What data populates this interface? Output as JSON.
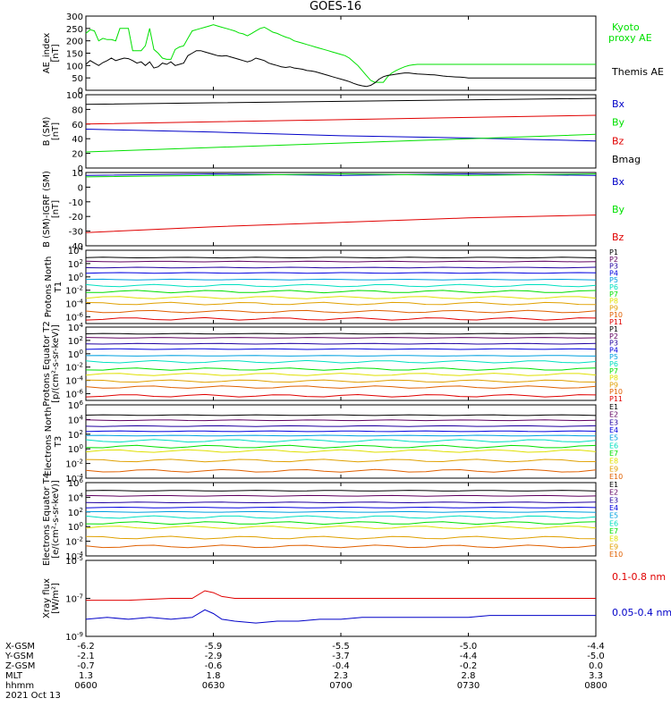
{
  "title": "GOES-16",
  "colors": {
    "black": "#000000",
    "green": "#00e000",
    "red": "#e00000",
    "blue": "#0000c8",
    "p_palette": [
      "#000000",
      "#600060",
      "#2000a0",
      "#0000e0",
      "#00a0e0",
      "#00e0c0",
      "#00e000",
      "#e0e000",
      "#e0a000",
      "#e06000",
      "#e00000"
    ]
  },
  "chart_data": [
    {
      "type": "line",
      "ylabel": "AE_index [nT]",
      "ylim": [
        0,
        300
      ],
      "y_ticks": [
        "0",
        "50",
        "100",
        "150",
        "200",
        "250",
        "300"
      ],
      "legend": [
        "Kyoto proxy AE",
        "Themis AE"
      ],
      "series": [
        {
          "name": "Kyoto proxy AE",
          "color": "#00e000",
          "x": [
            0,
            1,
            2,
            3,
            4,
            5,
            6,
            7,
            8,
            9,
            10,
            11,
            12,
            13,
            14,
            15,
            16,
            17,
            18,
            19,
            20,
            21,
            22,
            23,
            24,
            25,
            26,
            27,
            28,
            29,
            30,
            31,
            32,
            33,
            34,
            35,
            36,
            37,
            38,
            39,
            40,
            41,
            42,
            43,
            44,
            45,
            46,
            47,
            48,
            49,
            50,
            51,
            52,
            53,
            54,
            55,
            56,
            57,
            58,
            59,
            60,
            61,
            62,
            63,
            64,
            65,
            66,
            67,
            68,
            69,
            70,
            71,
            72,
            73,
            74,
            75,
            76,
            77,
            78,
            79,
            80,
            81,
            82,
            83,
            84,
            85,
            86,
            87,
            88,
            89,
            90,
            91,
            92,
            93,
            94,
            95,
            96,
            97,
            98,
            99,
            100,
            101,
            102,
            103,
            104,
            105,
            106,
            107,
            108,
            109,
            110,
            111,
            112,
            113,
            114,
            115,
            116,
            117,
            118,
            119,
            120
          ],
          "y": [
            230,
            245,
            240,
            200,
            210,
            205,
            205,
            200,
            250,
            250,
            250,
            160,
            160,
            160,
            180,
            250,
            165,
            150,
            130,
            125,
            125,
            165,
            175,
            180,
            210,
            240,
            245,
            250,
            255,
            260,
            265,
            260,
            255,
            250,
            245,
            240,
            232,
            228,
            220,
            230,
            240,
            250,
            255,
            245,
            235,
            230,
            222,
            215,
            210,
            200,
            195,
            190,
            185,
            180,
            175,
            170,
            165,
            160,
            155,
            150,
            145,
            140,
            130,
            115,
            100,
            80,
            60,
            40,
            32,
            32,
            32,
            55,
            70,
            80,
            88,
            95,
            100,
            103,
            105,
            105,
            105,
            105,
            105,
            105,
            105,
            105,
            105,
            105,
            105,
            105,
            105,
            105,
            105,
            105,
            105,
            105,
            105,
            105,
            105,
            105,
            105,
            105,
            105,
            105,
            105,
            105,
            105,
            105,
            105,
            105,
            105,
            105,
            105,
            105,
            105,
            105,
            105,
            105,
            105,
            105,
            105
          ]
        },
        {
          "name": "Themis AE",
          "color": "#000000",
          "x": [
            0,
            1,
            2,
            3,
            4,
            5,
            6,
            7,
            8,
            9,
            10,
            11,
            12,
            13,
            14,
            15,
            16,
            17,
            18,
            19,
            20,
            21,
            22,
            23,
            24,
            25,
            26,
            27,
            28,
            29,
            30,
            31,
            32,
            33,
            34,
            35,
            36,
            37,
            38,
            39,
            40,
            41,
            42,
            43,
            44,
            45,
            46,
            47,
            48,
            49,
            50,
            51,
            52,
            53,
            54,
            55,
            56,
            57,
            58,
            59,
            60,
            61,
            62,
            63,
            64,
            65,
            66,
            67,
            68,
            69,
            70,
            71,
            72,
            73,
            74,
            75,
            76,
            77,
            78,
            79,
            80,
            81,
            82,
            83,
            84,
            85,
            86,
            87,
            88,
            89,
            90,
            91,
            92,
            93,
            94,
            95,
            96,
            97,
            98,
            99,
            100,
            101,
            102,
            103,
            104,
            105,
            106,
            107,
            108,
            109,
            110,
            111,
            112,
            113,
            114,
            115,
            116,
            117,
            118,
            119,
            120
          ],
          "y": [
            105,
            120,
            110,
            100,
            112,
            120,
            130,
            120,
            125,
            130,
            128,
            120,
            110,
            115,
            100,
            115,
            90,
            95,
            110,
            105,
            115,
            100,
            105,
            110,
            140,
            150,
            160,
            160,
            155,
            150,
            145,
            140,
            138,
            140,
            135,
            130,
            125,
            120,
            115,
            120,
            130,
            125,
            120,
            110,
            105,
            100,
            95,
            92,
            95,
            90,
            88,
            85,
            80,
            78,
            75,
            70,
            65,
            60,
            55,
            50,
            45,
            40,
            35,
            28,
            22,
            18,
            15,
            20,
            30,
            45,
            55,
            60,
            62,
            65,
            68,
            70,
            70,
            68,
            66,
            65,
            64,
            63,
            62,
            60,
            58,
            56,
            55,
            54,
            53,
            52,
            50,
            50,
            50,
            50,
            50,
            50,
            50,
            50,
            50,
            50,
            50,
            50,
            50,
            50,
            50,
            50,
            50,
            50,
            50,
            50,
            50,
            50,
            50,
            50,
            50,
            50,
            50,
            50,
            50,
            50,
            50
          ]
        }
      ]
    },
    {
      "type": "line",
      "ylabel": "B (SM) [nT]",
      "ylim": [
        0,
        100
      ],
      "y_ticks": [
        "0",
        "20",
        "40",
        "60",
        "80",
        "100"
      ],
      "legend": [
        "Bx",
        "By",
        "Bz",
        "Bmag"
      ],
      "series": [
        {
          "name": "Bx",
          "color": "#0000c8",
          "x": [
            0,
            30,
            60,
            90,
            120
          ],
          "y": [
            53,
            49,
            44,
            41,
            37
          ]
        },
        {
          "name": "By",
          "color": "#00e000",
          "x": [
            0,
            30,
            60,
            90,
            120
          ],
          "y": [
            22,
            28,
            34,
            40,
            46
          ]
        },
        {
          "name": "Bz",
          "color": "#e00000",
          "x": [
            0,
            30,
            60,
            90,
            120
          ],
          "y": [
            60,
            63,
            66,
            69,
            72
          ]
        },
        {
          "name": "Bmag",
          "color": "#000000",
          "x": [
            0,
            30,
            60,
            90,
            120
          ],
          "y": [
            87,
            89,
            91,
            93,
            95
          ]
        }
      ]
    },
    {
      "type": "line",
      "ylabel": "B (SM)-IGRF (SM) [nT]",
      "ylim": [
        -40,
        10
      ],
      "y_ticks": [
        "-40",
        "-30",
        "-20",
        "-10",
        "0",
        "10"
      ],
      "legend": [
        "Bx",
        "By",
        "Bz"
      ],
      "series": [
        {
          "name": "Bx",
          "color": "#0000c8",
          "x": [
            0,
            30,
            60,
            90,
            120
          ],
          "y": [
            8,
            9,
            8,
            9,
            8
          ]
        },
        {
          "name": "By",
          "color": "#00e000",
          "x": [
            0,
            30,
            60,
            90,
            120
          ],
          "y": [
            7,
            8,
            9,
            8,
            9
          ]
        },
        {
          "name": "Bz",
          "color": "#e00000",
          "x": [
            0,
            30,
            60,
            90,
            120
          ],
          "y": [
            -31,
            -27,
            -24,
            -21,
            -19
          ]
        }
      ]
    },
    {
      "type": "line",
      "ylabel": "Protons North T1",
      "log": true,
      "ylim_exp": [
        -7,
        4
      ],
      "y_ticks": [
        "10^4",
        "10^2",
        "10^0",
        "10^-2",
        "10^-4",
        "10^-6"
      ],
      "legend": [
        "P1",
        "P2",
        "P3",
        "P4",
        "P5",
        "P6",
        "P7",
        "P8",
        "P9",
        "P10",
        "P11"
      ],
      "levels_exp": [
        2.9,
        2.3,
        1.4,
        0.6,
        -0.4,
        -1.3,
        -2.2,
        -3.1,
        -4.0,
        -5.2,
        -6.3
      ]
    },
    {
      "type": "line",
      "ylabel": "Protons Equator T2 [p/(cm²-s-sr-keV)]",
      "log": true,
      "ylim_exp": [
        -7,
        4
      ],
      "y_ticks": [
        "10^4",
        "10^2",
        "10^0",
        "10^-2",
        "10^-4",
        "10^-6"
      ],
      "legend": [
        "P1",
        "P2",
        "P3",
        "P4",
        "P5",
        "P6",
        "P7",
        "P8",
        "P9",
        "P10",
        "P11"
      ],
      "levels_exp": [
        3.0,
        2.4,
        1.5,
        0.7,
        -0.3,
        -1.2,
        -2.3,
        -3.1,
        -4.1,
        -5.0,
        -6.3
      ]
    },
    {
      "type": "line",
      "ylabel": "Electrons North T3",
      "log": true,
      "ylim_exp": [
        -4,
        6
      ],
      "y_ticks": [
        "10^6",
        "10^4",
        "10^2",
        "10^0",
        "10^-2",
        "10^-4"
      ],
      "legend": [
        "E1",
        "E2",
        "E3",
        "E4",
        "E5",
        "E6",
        "E7",
        "E8",
        "E9",
        "E10"
      ],
      "levels_exp": [
        4.6,
        3.9,
        3.1,
        2.4,
        1.8,
        1.1,
        0.3,
        -0.3,
        -1.6,
        -3.0
      ]
    },
    {
      "type": "line",
      "ylabel": "Electrons Equator T4 [e/(cm²-s-sr-keV)]",
      "log": true,
      "ylim_exp": [
        -4,
        6
      ],
      "y_ticks": [
        "10^6",
        "10^4",
        "10^2",
        "10^0",
        "10^-2",
        "10^-4"
      ],
      "legend": [
        "E1",
        "E2",
        "E3",
        "E4",
        "E5",
        "E6",
        "E7",
        "E8",
        "E9",
        "E10"
      ],
      "levels_exp": [
        4.9,
        4.2,
        3.3,
        2.6,
        2.0,
        1.3,
        0.5,
        -0.1,
        -1.5,
        -2.7
      ]
    },
    {
      "type": "line",
      "ylabel": "Xray flux [W/m²]",
      "log": true,
      "ylim_exp": [
        -9,
        -5
      ],
      "y_ticks": [
        "10^-5",
        "10^-7",
        "10^-9"
      ],
      "legend": [
        "0.1-0.8 nm",
        "0.05-0.4 nm"
      ],
      "series": [
        {
          "name": "0.1-0.8 nm",
          "color": "#e00000",
          "x": [
            0,
            10,
            20,
            25,
            28,
            30,
            32,
            35,
            40,
            50,
            60,
            70,
            80,
            90,
            100,
            110,
            120
          ],
          "y": [
            -7.1,
            -7.1,
            -7.0,
            -7.0,
            -6.6,
            -6.7,
            -6.9,
            -7.0,
            -7.0,
            -7.0,
            -7.0,
            -7.0,
            -7.0,
            -7.0,
            -7.0,
            -7.0,
            -7.0
          ]
        },
        {
          "name": "0.05-0.4 nm",
          "color": "#0000c8",
          "x": [
            0,
            5,
            10,
            15,
            20,
            25,
            28,
            30,
            32,
            35,
            40,
            45,
            50,
            55,
            60,
            65,
            70,
            75,
            80,
            85,
            90,
            95,
            100,
            105,
            110,
            115,
            120
          ],
          "y": [
            -8.1,
            -8.0,
            -8.1,
            -8.0,
            -8.1,
            -8.0,
            -7.6,
            -7.8,
            -8.1,
            -8.2,
            -8.3,
            -8.2,
            -8.2,
            -8.1,
            -8.1,
            -8.0,
            -8.0,
            -8.0,
            -8.0,
            -8.0,
            -8.0,
            -7.9,
            -7.9,
            -7.9,
            -7.9,
            -7.9,
            -7.9
          ]
        }
      ]
    }
  ],
  "x_axis": {
    "row_labels": [
      "X-GSM",
      "Y-GSM",
      "Z-GSM",
      "MLT",
      "hhmm"
    ],
    "date": "2021 Oct 13",
    "ticks": [
      {
        "pos": 0,
        "values": [
          "-6.2",
          "-2.1",
          "-0.7",
          "1.3",
          "0600"
        ]
      },
      {
        "pos": 30,
        "values": [
          "-5.9",
          "-2.9",
          "-0.6",
          "1.8",
          "0630"
        ]
      },
      {
        "pos": 60,
        "values": [
          "-5.5",
          "-3.7",
          "-0.4",
          "2.3",
          "0700"
        ]
      },
      {
        "pos": 90,
        "values": [
          "-5.0",
          "-4.4",
          "-0.2",
          "2.8",
          "0730"
        ]
      },
      {
        "pos": 120,
        "values": [
          "-4.4",
          "-5.0",
          "0.0",
          "3.3",
          "0800"
        ]
      }
    ]
  }
}
